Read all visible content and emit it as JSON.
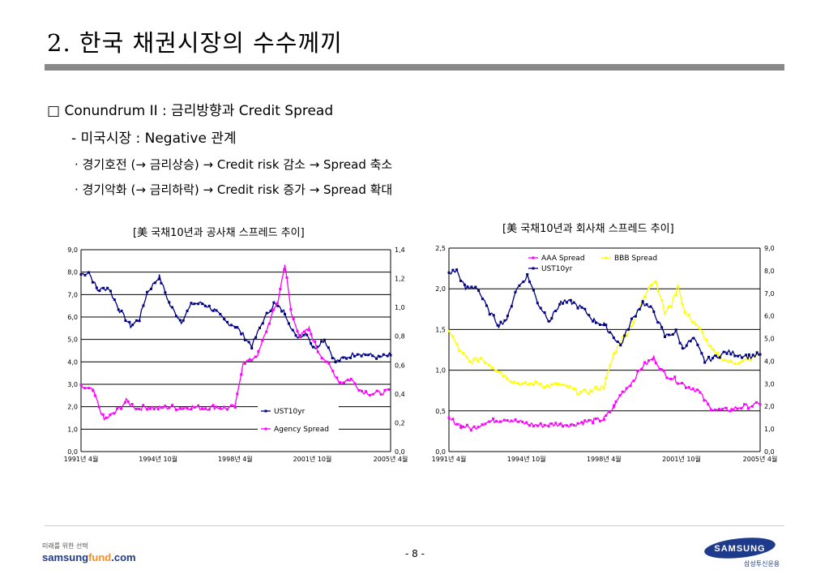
{
  "title": "2. 한국 채권시장의 수수께끼",
  "bullets": {
    "b1": "□ Conundrum II : 금리방향과 Credit Spread",
    "b2": "- 미국시장 : Negative 관계",
    "b3": "· 경기호전 (→ 금리상승) → Credit risk 감소 → Spread 축소",
    "b4": "· 경기악화 (→ 금리하락) → Credit risk 증가 → Spread 확대"
  },
  "chart_data": [
    {
      "type": "line",
      "title": "[美 국채10년과 공사채 스프레드 추이]",
      "x_ticks": [
        "1991년 4월",
        "1994년 10월",
        "1998년 4월",
        "2001년 10월",
        "2005년 4월"
      ],
      "y_left": {
        "lim": [
          0,
          9
        ],
        "ticks": [
          "0,0",
          "1,0",
          "2,0",
          "3,0",
          "4,0",
          "5,0",
          "6,0",
          "7,0",
          "8,0",
          "9,0"
        ]
      },
      "y_right": {
        "lim": [
          0,
          1.4
        ],
        "ticks": [
          "0,0",
          "0,2",
          "0,4",
          "0,6",
          "0,8",
          "1,0",
          "1,2",
          "1,4"
        ]
      },
      "legend": "bottom-right",
      "series": [
        {
          "name": "UST10yr",
          "axis": "left",
          "color": "#000080",
          "x": [
            1991.25,
            1991.6,
            1992.0,
            1992.5,
            1993.0,
            1993.5,
            1993.9,
            1994.25,
            1994.8,
            1995.3,
            1995.8,
            1996.3,
            1996.8,
            1997.3,
            1997.8,
            1998.25,
            1998.6,
            1999.0,
            1999.5,
            2000.0,
            2000.5,
            2001.0,
            2001.5,
            2001.8,
            2002.3,
            2002.8,
            2003.3,
            2003.8,
            2004.3,
            2004.8,
            2005.3
          ],
          "values": [
            7.9,
            8.0,
            7.2,
            7.3,
            6.3,
            5.6,
            5.9,
            7.1,
            7.8,
            6.5,
            5.8,
            6.6,
            6.6,
            6.3,
            5.8,
            5.6,
            5.2,
            4.7,
            5.8,
            6.6,
            6.2,
            5.1,
            5.3,
            4.6,
            5.0,
            4.0,
            4.2,
            4.4,
            4.3,
            4.2,
            4.3
          ]
        },
        {
          "name": "Agency Spread",
          "axis": "right",
          "color": "#ff00ff",
          "x": [
            1991.25,
            1991.8,
            1992.3,
            1992.8,
            1993.3,
            1993.8,
            1994.3,
            1994.8,
            1995.3,
            1995.8,
            1996.3,
            1996.8,
            1997.3,
            1997.8,
            1998.25,
            1998.6,
            1998.9,
            1999.3,
            1999.8,
            2000.2,
            2000.5,
            2000.8,
            2001.2,
            2001.6,
            2002.0,
            2002.5,
            2003.0,
            2003.5,
            2004.0,
            2004.5,
            2005.3
          ],
          "values": [
            0.45,
            0.42,
            0.22,
            0.27,
            0.35,
            0.3,
            0.31,
            0.3,
            0.31,
            0.3,
            0.31,
            0.3,
            0.31,
            0.3,
            0.31,
            0.62,
            0.63,
            0.68,
            0.9,
            1.05,
            1.3,
            0.95,
            0.8,
            0.85,
            0.7,
            0.6,
            0.48,
            0.5,
            0.42,
            0.4,
            0.42
          ]
        }
      ]
    },
    {
      "type": "line",
      "title": "[美 국채10년과 회사채 스프레드 추이]",
      "x_ticks": [
        "1991년 4월",
        "1994년 10월",
        "1998년 4월",
        "2001년 10월",
        "2005년 4월"
      ],
      "y_left": {
        "lim": [
          0,
          2.5
        ],
        "ticks": [
          "0,0",
          "0,5",
          "1,0",
          "1,5",
          "2,0",
          "2,5"
        ]
      },
      "y_right": {
        "lim": [
          0,
          9
        ],
        "ticks": [
          "0,0",
          "1,0",
          "2,0",
          "3,0",
          "4,0",
          "5,0",
          "6,0",
          "7,0",
          "8,0",
          "9,0"
        ]
      },
      "legend": "top",
      "series": [
        {
          "name": "AAA Spread",
          "axis": "left",
          "color": "#ff00ff",
          "x": [
            1991.25,
            1991.8,
            1992.3,
            1992.8,
            1993.3,
            1993.8,
            1994.3,
            1994.8,
            1995.3,
            1995.8,
            1996.3,
            1996.8,
            1997.3,
            1997.8,
            1998.25,
            1998.7,
            1999.0,
            1999.5,
            2000.0,
            2000.5,
            2001.0,
            2001.5,
            2002.0,
            2002.5,
            2003.0,
            2003.5,
            2004.0,
            2004.5,
            2005.3
          ],
          "values": [
            0.4,
            0.32,
            0.28,
            0.35,
            0.38,
            0.4,
            0.37,
            0.34,
            0.32,
            0.33,
            0.34,
            0.33,
            0.36,
            0.38,
            0.4,
            0.55,
            0.7,
            0.85,
            1.05,
            1.15,
            0.95,
            0.88,
            0.8,
            0.75,
            0.55,
            0.5,
            0.52,
            0.55,
            0.58
          ]
        },
        {
          "name": "BBB Spread",
          "axis": "left",
          "color": "#ffff00",
          "x": [
            1991.25,
            1991.7,
            1992.2,
            1992.7,
            1993.2,
            1993.7,
            1994.2,
            1994.7,
            1995.2,
            1995.7,
            1996.2,
            1996.7,
            1997.2,
            1997.7,
            1998.25,
            1998.7,
            1999.0,
            1999.5,
            2000.0,
            2000.3,
            2000.6,
            2001.0,
            2001.3,
            2001.6,
            2001.9,
            2002.3,
            2002.7,
            2003.1,
            2003.5,
            2004.0,
            2004.5,
            2005.3
          ],
          "values": [
            1.5,
            1.25,
            1.1,
            1.15,
            1.05,
            0.95,
            0.85,
            0.82,
            0.85,
            0.8,
            0.82,
            0.78,
            0.72,
            0.75,
            0.8,
            1.2,
            1.35,
            1.55,
            1.85,
            2.05,
            2.1,
            1.7,
            1.8,
            2.05,
            1.7,
            1.6,
            1.45,
            1.25,
            1.15,
            1.1,
            1.1,
            1.2
          ]
        },
        {
          "name": "UST10yr",
          "axis": "right",
          "color": "#000080",
          "x": [
            1991.25,
            1991.6,
            1992.0,
            1992.5,
            1993.0,
            1993.5,
            1993.9,
            1994.25,
            1994.8,
            1995.3,
            1995.8,
            1996.3,
            1996.8,
            1997.3,
            1997.8,
            1998.25,
            1998.6,
            1999.0,
            1999.5,
            2000.0,
            2000.5,
            2001.0,
            2001.5,
            2001.8,
            2002.3,
            2002.8,
            2003.3,
            2003.8,
            2004.3,
            2004.8,
            2005.3
          ],
          "values": [
            7.9,
            8.0,
            7.2,
            7.3,
            6.3,
            5.6,
            5.9,
            7.1,
            7.8,
            6.5,
            5.8,
            6.6,
            6.6,
            6.3,
            5.8,
            5.6,
            5.2,
            4.7,
            5.8,
            6.6,
            6.2,
            5.1,
            5.3,
            4.6,
            5.0,
            4.0,
            4.2,
            4.4,
            4.3,
            4.2,
            4.3
          ]
        }
      ]
    }
  ],
  "footer": {
    "slogan": "미래를 위한 선택",
    "url_a": "samsung",
    "url_b": "fund",
    "url_c": ".com",
    "page": "- 8 -",
    "logo_text": "SAMSUNG",
    "company": "삼성투신운용",
    "colors": {
      "navy": "#1e3a8a",
      "orange": "#ff8c1a"
    }
  }
}
